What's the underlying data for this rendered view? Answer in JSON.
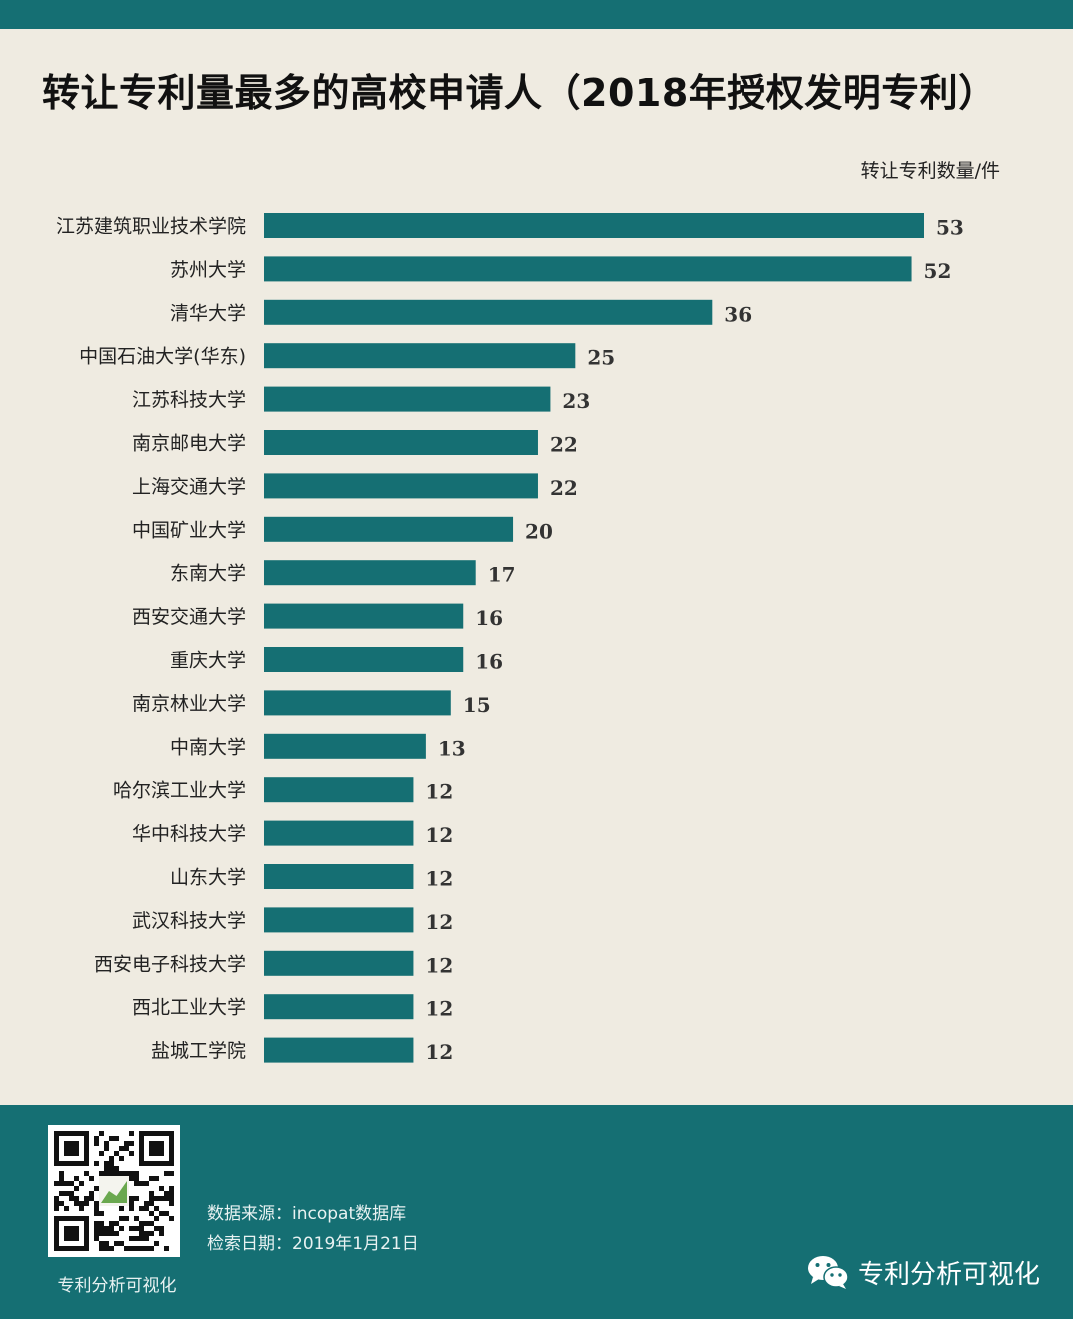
{
  "header": {
    "title": "转让专利量最多的高校申请人（2018年授权发明专利）"
  },
  "chart_data": {
    "type": "bar",
    "orientation": "horizontal",
    "unit_label": "转让专利数量/件",
    "categories": [
      "江苏建筑职业技术学院",
      "苏州大学",
      "清华大学",
      "中国石油大学(华东)",
      "江苏科技大学",
      "南京邮电大学",
      "上海交通大学",
      "中国矿业大学",
      "东南大学",
      "西安交通大学",
      "重庆大学",
      "南京林业大学",
      "中南大学",
      "哈尔滨工业大学",
      "华中科技大学",
      "山东大学",
      "武汉科技大学",
      "西安电子科技大学",
      "西北工业大学",
      "盐城工学院"
    ],
    "values": [
      53,
      52,
      36,
      25,
      23,
      22,
      22,
      20,
      17,
      16,
      16,
      15,
      13,
      12,
      12,
      12,
      12,
      12,
      12,
      12
    ],
    "bar_color": "#156f73",
    "xlim": [
      0,
      53
    ],
    "grid": false,
    "legend": "none"
  },
  "footer": {
    "qr_caption": "专利分析可视化",
    "source": "数据来源：incopat数据库",
    "date": "检索日期：2019年1月21日",
    "brand": "专利分析可视化",
    "brand_icon": "wechat-icon",
    "background_color": "#156f73"
  }
}
